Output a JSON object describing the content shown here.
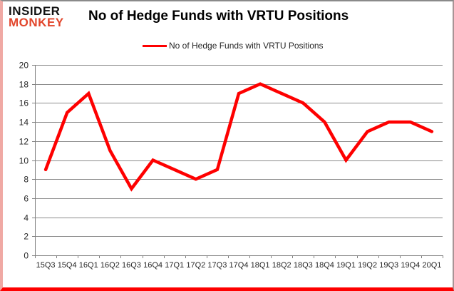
{
  "logo": {
    "line1": "INSIDER",
    "line2": "MONKEY"
  },
  "header": {
    "title": "No of Hedge Funds with VRTU Positions"
  },
  "legend": {
    "label": "No of Hedge Funds with VRTU Positions"
  },
  "colors": {
    "series": "#fe0000",
    "grid": "#8c8c8c",
    "axis": "#808080",
    "tick_label": "#262626",
    "logo_top": "#121212",
    "logo_bottom": "#e2462c"
  },
  "chart_data": {
    "type": "line",
    "title": "No of Hedge Funds with VRTU Positions",
    "categories": [
      "15Q3",
      "15Q4",
      "16Q1",
      "16Q2",
      "16Q3",
      "16Q4",
      "17Q1",
      "17Q2",
      "17Q3",
      "17Q4",
      "18Q1",
      "18Q2",
      "18Q3",
      "18Q4",
      "19Q1",
      "19Q2",
      "19Q3",
      "19Q4",
      "20Q1"
    ],
    "series": [
      {
        "name": "No of Hedge Funds with VRTU Positions",
        "color": "#fe0000",
        "values": [
          9,
          15,
          17,
          11,
          7,
          10,
          9,
          8,
          9,
          17,
          18,
          17,
          16,
          14,
          10,
          13,
          14,
          14,
          13
        ]
      }
    ],
    "xlabel": "",
    "ylabel": "",
    "ylim": [
      0,
      20
    ],
    "ytick_step": 2,
    "grid": true,
    "legend_position": "top"
  }
}
